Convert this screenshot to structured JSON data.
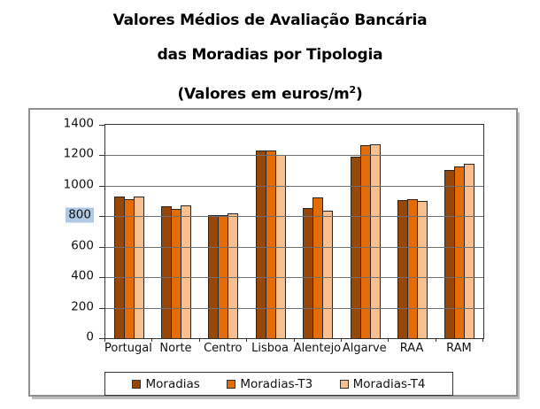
{
  "title": {
    "line1": "Valores Médios de Avaliação Bancária",
    "line2": "das Moradias por Tipologia",
    "line3_prefix": "(Valores em euros/m",
    "line3_sup": "2",
    "line3_suffix": ")"
  },
  "colors": {
    "series_moradias": "#974706",
    "series_moradias_t3": "#E26B0A",
    "series_moradias_t4": "#FABF8F",
    "bar_border": "#262626",
    "gridline": "#6e6e6e",
    "plot_border": "#333333",
    "frame_border": "#8f8f8f",
    "ytick_highlight_bg": "#aecbe3"
  },
  "chart_data": {
    "type": "bar",
    "title": "Valores Médios de Avaliação Bancária das Moradias por Tipologia (Valores em euros/m2)",
    "categories": [
      "Portugal",
      "Norte",
      "Centro",
      "Lisboa",
      "Alentejo",
      "Algarve",
      "RAA",
      "RAM"
    ],
    "series": [
      {
        "name": "Moradias",
        "color": "#974706",
        "values": [
          930,
          865,
          805,
          1230,
          855,
          1190,
          905,
          1105
        ]
      },
      {
        "name": "Moradias-T3",
        "color": "#E26B0A",
        "values": [
          915,
          850,
          810,
          1230,
          925,
          1265,
          915,
          1125
        ]
      },
      {
        "name": "Moradias-T4",
        "color": "#FABF8F",
        "values": [
          930,
          870,
          820,
          1200,
          835,
          1270,
          900,
          1145
        ]
      }
    ],
    "ylim": [
      0,
      1400
    ],
    "yticks": [
      0,
      200,
      400,
      600,
      800,
      1000,
      1200,
      1400
    ],
    "highlighted_ytick": 800,
    "grid": true,
    "legend_position": "bottom",
    "xlabel": "",
    "ylabel": ""
  }
}
